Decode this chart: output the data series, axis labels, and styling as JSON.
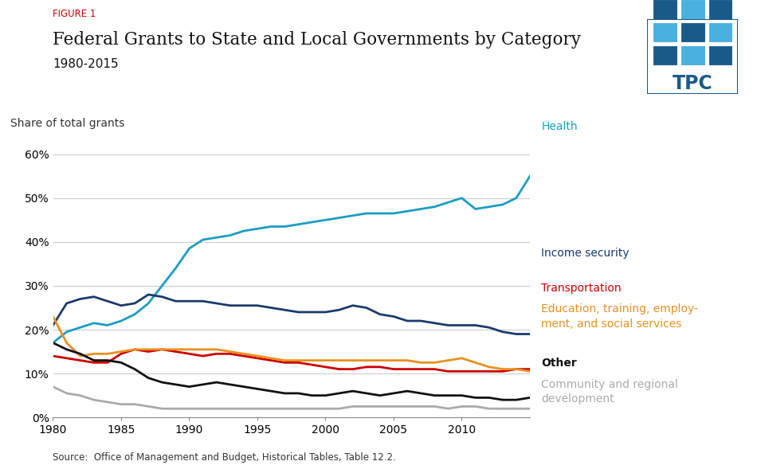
{
  "years": [
    1980,
    1981,
    1982,
    1983,
    1984,
    1985,
    1986,
    1987,
    1988,
    1989,
    1990,
    1991,
    1992,
    1993,
    1994,
    1995,
    1996,
    1997,
    1998,
    1999,
    2000,
    2001,
    2002,
    2003,
    2004,
    2005,
    2006,
    2007,
    2008,
    2009,
    2010,
    2011,
    2012,
    2013,
    2014,
    2015
  ],
  "health": [
    17.0,
    19.5,
    20.5,
    21.5,
    21.0,
    22.0,
    23.5,
    26.0,
    30.0,
    34.0,
    38.5,
    40.5,
    41.0,
    41.5,
    42.5,
    43.0,
    43.5,
    43.5,
    44.0,
    44.5,
    45.0,
    45.5,
    46.0,
    46.5,
    46.5,
    46.5,
    47.0,
    47.5,
    48.0,
    49.0,
    50.0,
    47.5,
    48.0,
    48.5,
    50.0,
    55.0
  ],
  "income_security": [
    21.0,
    26.0,
    27.0,
    27.5,
    26.5,
    25.5,
    26.0,
    28.0,
    27.5,
    26.5,
    26.5,
    26.5,
    26.0,
    25.5,
    25.5,
    25.5,
    25.0,
    24.5,
    24.0,
    24.0,
    24.0,
    24.5,
    25.5,
    25.0,
    23.5,
    23.0,
    22.0,
    22.0,
    21.5,
    21.0,
    21.0,
    21.0,
    20.5,
    19.5,
    19.0,
    19.0
  ],
  "transportation": [
    14.0,
    13.5,
    13.0,
    12.5,
    12.5,
    14.5,
    15.5,
    15.0,
    15.5,
    15.0,
    14.5,
    14.0,
    14.5,
    14.5,
    14.0,
    13.5,
    13.0,
    12.5,
    12.5,
    12.0,
    11.5,
    11.0,
    11.0,
    11.5,
    11.5,
    11.0,
    11.0,
    11.0,
    11.0,
    10.5,
    10.5,
    10.5,
    10.5,
    10.5,
    11.0,
    11.0
  ],
  "education": [
    23.0,
    17.0,
    14.0,
    14.5,
    14.5,
    15.0,
    15.5,
    15.5,
    15.5,
    15.5,
    15.5,
    15.5,
    15.5,
    15.0,
    14.5,
    14.0,
    13.5,
    13.0,
    13.0,
    13.0,
    13.0,
    13.0,
    13.0,
    13.0,
    13.0,
    13.0,
    13.0,
    12.5,
    12.5,
    13.0,
    13.5,
    12.5,
    11.5,
    11.0,
    11.0,
    10.5
  ],
  "other": [
    17.0,
    15.5,
    14.5,
    13.0,
    13.0,
    12.5,
    11.0,
    9.0,
    8.0,
    7.5,
    7.0,
    7.5,
    8.0,
    7.5,
    7.0,
    6.5,
    6.0,
    5.5,
    5.5,
    5.0,
    5.0,
    5.5,
    6.0,
    5.5,
    5.0,
    5.5,
    6.0,
    5.5,
    5.0,
    5.0,
    5.0,
    4.5,
    4.5,
    4.0,
    4.0,
    4.5
  ],
  "community": [
    7.0,
    5.5,
    5.0,
    4.0,
    3.5,
    3.0,
    3.0,
    2.5,
    2.0,
    2.0,
    2.0,
    2.0,
    2.0,
    2.0,
    2.0,
    2.0,
    2.0,
    2.0,
    2.0,
    2.0,
    2.0,
    2.0,
    2.5,
    2.5,
    2.5,
    2.5,
    2.5,
    2.5,
    2.5,
    2.0,
    2.5,
    2.5,
    2.0,
    2.0,
    2.0,
    2.0
  ],
  "color_health": "#1a9dc4",
  "color_income": "#1a3a6b",
  "color_transportation": "#cc0000",
  "color_education": "#e89020",
  "color_other": "#111111",
  "color_community": "#aaaaaa",
  "figure1_color": "#cc0000",
  "title": "Federal Grants to State and Local Governments by Category",
  "subtitle": "1980-2015",
  "figure_label": "FIGURE 1",
  "ylabel": "Share of total grants",
  "source_text": "Source:  Office of Management and Budget, Historical Tables, Table 12.2.",
  "bg_color": "#ffffff",
  "tpc_color_dark": "#1a5a8a",
  "tpc_color_light": "#4ab0e0"
}
